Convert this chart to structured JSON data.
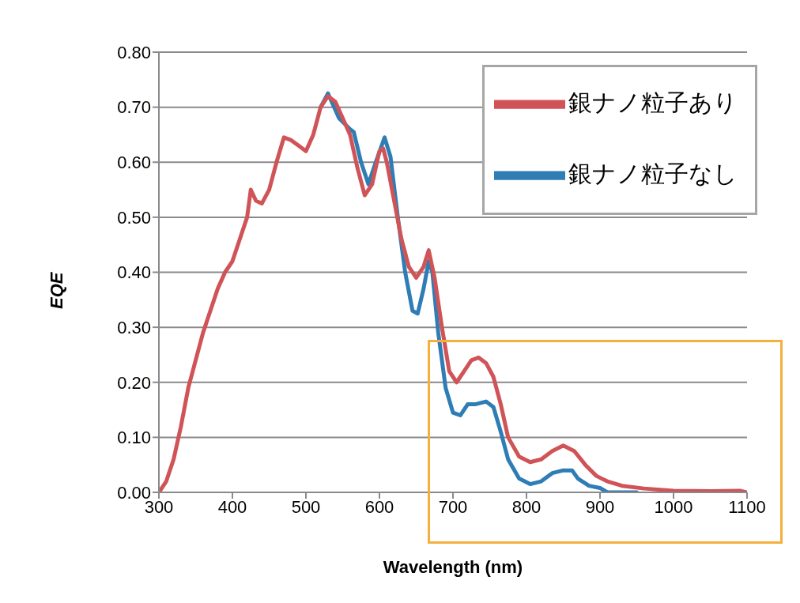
{
  "chart_data": {
    "type": "line",
    "xlabel": "Wavelength (nm)",
    "ylabel": "EQE",
    "xlim": [
      300,
      1100
    ],
    "xticks": [
      300,
      400,
      500,
      600,
      700,
      800,
      900,
      1000,
      1100
    ],
    "ylim": [
      0,
      0.8
    ],
    "yticks": [
      {
        "value": 0,
        "label": "0.00"
      },
      {
        "value": 0.1,
        "label": "0.10"
      },
      {
        "value": 0.2,
        "label": "0.20"
      },
      {
        "value": 0.3,
        "label": "0.30"
      },
      {
        "value": 0.4,
        "label": "0.40"
      },
      {
        "value": 0.5,
        "label": "0.50"
      },
      {
        "value": 0.6,
        "label": "0.60"
      },
      {
        "value": 0.7,
        "label": "0.70"
      },
      {
        "value": 0.8,
        "label": "0.80"
      }
    ],
    "grid": "y",
    "legend": "top right",
    "marker": "none",
    "line_style": "solid",
    "series": [
      {
        "name": "銀ナノ粒子あり",
        "color": "#d05457",
        "x": [
          300,
          310,
          320,
          330,
          340,
          350,
          360,
          370,
          380,
          390,
          400,
          410,
          420,
          425,
          432,
          440,
          450,
          460,
          470,
          480,
          490,
          500,
          510,
          520,
          530,
          540,
          550,
          560,
          570,
          580,
          590,
          600,
          605,
          610,
          620,
          630,
          640,
          650,
          660,
          667,
          675,
          685,
          695,
          705,
          715,
          725,
          735,
          745,
          755,
          765,
          775,
          790,
          805,
          820,
          835,
          850,
          865,
          880,
          895,
          910,
          930,
          960,
          1000,
          1050,
          1090,
          1100
        ],
        "values": [
          0,
          0.02,
          0.06,
          0.12,
          0.19,
          0.24,
          0.29,
          0.33,
          0.37,
          0.4,
          0.42,
          0.46,
          0.5,
          0.55,
          0.53,
          0.525,
          0.55,
          0.6,
          0.645,
          0.64,
          0.63,
          0.62,
          0.65,
          0.7,
          0.72,
          0.71,
          0.68,
          0.65,
          0.59,
          0.54,
          0.56,
          0.62,
          0.625,
          0.6,
          0.53,
          0.46,
          0.41,
          0.39,
          0.41,
          0.44,
          0.39,
          0.3,
          0.22,
          0.2,
          0.22,
          0.24,
          0.245,
          0.235,
          0.21,
          0.16,
          0.1,
          0.065,
          0.055,
          0.06,
          0.075,
          0.085,
          0.075,
          0.05,
          0.03,
          0.02,
          0.012,
          0.007,
          0.003,
          0.002,
          0.003,
          0
        ]
      },
      {
        "name": "銀ナノ粒子なし",
        "color": "#2e7db5",
        "x": [
          520,
          530,
          545,
          560,
          565,
          575,
          585,
          595,
          607,
          615,
          625,
          635,
          645,
          652,
          660,
          667,
          672,
          680,
          690,
          700,
          710,
          720,
          730,
          745,
          755,
          765,
          775,
          790,
          805,
          820,
          835,
          850,
          862,
          870,
          885,
          900,
          910,
          950
        ],
        "values": [
          0.7,
          0.725,
          0.68,
          0.66,
          0.655,
          0.6,
          0.56,
          0.6,
          0.645,
          0.61,
          0.5,
          0.4,
          0.33,
          0.325,
          0.37,
          0.42,
          0.4,
          0.29,
          0.19,
          0.145,
          0.14,
          0.16,
          0.16,
          0.165,
          0.155,
          0.11,
          0.06,
          0.025,
          0.015,
          0.02,
          0.035,
          0.04,
          0.04,
          0.025,
          0.012,
          0.008,
          0,
          0
        ]
      }
    ]
  }
}
